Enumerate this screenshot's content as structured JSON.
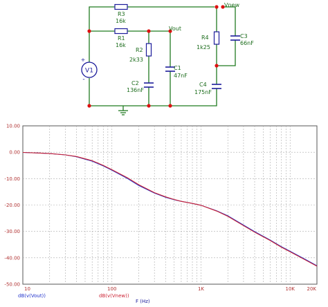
{
  "schematic": {
    "source": {
      "label": "V1",
      "plus": "+",
      "minus": "-"
    },
    "nodes": {
      "vout": "Vout",
      "vnew": "Vnew"
    },
    "components": [
      {
        "id": "R3",
        "name": "R3",
        "value": "16k"
      },
      {
        "id": "R1",
        "name": "R1",
        "value": "16k"
      },
      {
        "id": "R2",
        "name": "R2",
        "value": "2k33"
      },
      {
        "id": "C2",
        "name": "C2",
        "value": "136nF"
      },
      {
        "id": "C1",
        "name": "C1",
        "value": "47nF"
      },
      {
        "id": "R4",
        "name": "R4",
        "value": "1k25"
      },
      {
        "id": "C3",
        "name": "C3",
        "value": "66nF"
      },
      {
        "id": "C4",
        "name": "C4",
        "value": "175nF"
      }
    ]
  },
  "colors": {
    "wire": "#1f7a1f",
    "junction": "#dd1111",
    "component": "#1a1a9a",
    "label": "#1a6b1a",
    "grid": "#aaaaaa",
    "axis_text": "#b03030",
    "vout_curve": "#2233cc",
    "vnew_curve": "#cc2233"
  },
  "chart_data": {
    "type": "line",
    "xscale": "log",
    "xlim": [
      10,
      20000
    ],
    "ylim": [
      -50,
      10
    ],
    "x_tick_labels": [
      "10",
      "100",
      "1K",
      "10K",
      "20K"
    ],
    "y_tick_labels": [
      "10.00",
      "0.00",
      "-10.00",
      "-20.00",
      "-30.00",
      "-40.00",
      "-50.00"
    ],
    "xlabel": "F (Hz)",
    "grid": true,
    "series": [
      {
        "name": "dB(v(Vout))",
        "color": "#2233cc",
        "x": [
          10,
          15,
          20,
          30,
          40,
          60,
          80,
          100,
          150,
          200,
          300,
          400,
          500,
          600,
          800,
          1000,
          1500,
          2000,
          3000,
          4000,
          6000,
          8000,
          10000,
          15000,
          20000
        ],
        "y": [
          -0.1,
          -0.3,
          -0.5,
          -1.0,
          -1.7,
          -3.4,
          -5.2,
          -6.8,
          -10.0,
          -12.6,
          -15.5,
          -17.1,
          -18.0,
          -18.6,
          -19.4,
          -20.1,
          -22.2,
          -24.1,
          -27.6,
          -30.1,
          -33.3,
          -35.8,
          -37.5,
          -40.7,
          -43.0
        ]
      },
      {
        "name": "dB(v(Vnew))",
        "color": "#cc2233",
        "x": [
          10,
          15,
          20,
          30,
          40,
          60,
          80,
          100,
          150,
          200,
          300,
          400,
          500,
          600,
          800,
          1000,
          1500,
          2000,
          3000,
          4000,
          6000,
          8000,
          10000,
          15000,
          20000
        ],
        "y": [
          -0.1,
          -0.3,
          -0.5,
          -1.0,
          -1.6,
          -3.2,
          -5.0,
          -6.6,
          -9.7,
          -12.3,
          -15.3,
          -16.9,
          -17.9,
          -18.6,
          -19.4,
          -20.1,
          -22.3,
          -24.3,
          -27.8,
          -30.3,
          -33.5,
          -36.0,
          -37.7,
          -40.9,
          -43.2
        ]
      }
    ]
  }
}
